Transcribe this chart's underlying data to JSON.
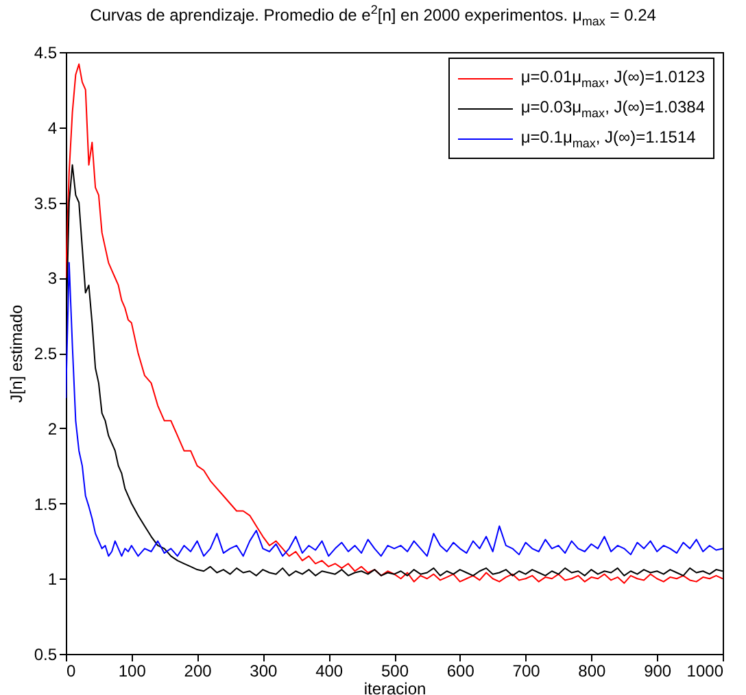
{
  "chart_data": {
    "type": "line",
    "title": "Curvas de aprendizaje. Promedio de e$^{2}$[n] en 2000 experimentos. μ$_{max}$ = 0.24",
    "xlabel": "iteracion",
    "ylabel": "J[n] estimado",
    "x": [
      0,
      5,
      10,
      15,
      20,
      25,
      30,
      35,
      40,
      45,
      50,
      55,
      60,
      65,
      70,
      75,
      80,
      85,
      90,
      95,
      100,
      110,
      120,
      130,
      140,
      150,
      160,
      170,
      180,
      190,
      200,
      210,
      220,
      230,
      240,
      250,
      260,
      270,
      280,
      290,
      300,
      310,
      320,
      330,
      340,
      350,
      360,
      370,
      380,
      390,
      400,
      410,
      420,
      430,
      440,
      450,
      460,
      470,
      480,
      490,
      500,
      510,
      520,
      530,
      540,
      550,
      560,
      570,
      580,
      590,
      600,
      610,
      620,
      630,
      640,
      650,
      660,
      670,
      680,
      690,
      700,
      710,
      720,
      730,
      740,
      750,
      760,
      770,
      780,
      790,
      800,
      810,
      820,
      830,
      840,
      850,
      860,
      870,
      880,
      890,
      900,
      910,
      920,
      930,
      940,
      950,
      960,
      970,
      980,
      990,
      1000
    ],
    "xlim": [
      0,
      1000
    ],
    "xticks": [
      0,
      100,
      200,
      300,
      400,
      500,
      600,
      700,
      800,
      900,
      1000
    ],
    "ylim": [
      0.5,
      4.5
    ],
    "yticks": [
      0.5,
      1,
      1.5,
      2,
      2.5,
      3,
      3.5,
      4,
      4.5
    ],
    "grid": false,
    "legend": "top right",
    "line_style": "solid",
    "marker": "none",
    "series": [
      {
        "name": "μ=0.01μ$_{max}$, J(∞)=1.0123",
        "color": "#ff0000",
        "values": [
          3.0,
          3.7,
          4.1,
          4.35,
          4.42,
          4.3,
          4.25,
          3.75,
          3.9,
          3.6,
          3.55,
          3.3,
          3.2,
          3.1,
          3.05,
          3.0,
          2.95,
          2.85,
          2.8,
          2.72,
          2.7,
          2.5,
          2.35,
          2.3,
          2.15,
          2.05,
          2.05,
          1.95,
          1.85,
          1.85,
          1.75,
          1.72,
          1.65,
          1.6,
          1.55,
          1.5,
          1.45,
          1.45,
          1.42,
          1.35,
          1.28,
          1.22,
          1.25,
          1.2,
          1.15,
          1.18,
          1.12,
          1.15,
          1.1,
          1.12,
          1.08,
          1.1,
          1.07,
          1.1,
          1.05,
          1.08,
          1.04,
          1.06,
          1.02,
          1.05,
          1.03,
          1.0,
          1.04,
          0.98,
          1.02,
          1.0,
          1.03,
          0.99,
          1.01,
          1.03,
          0.98,
          1.0,
          1.02,
          0.99,
          1.04,
          1.0,
          0.98,
          1.01,
          1.03,
          0.99,
          1.0,
          1.02,
          0.98,
          1.01,
          1.0,
          1.03,
          0.99,
          1.0,
          1.02,
          0.98,
          1.01,
          1.0,
          1.03,
          0.99,
          1.01,
          0.97,
          1.02,
          1.0,
          0.99,
          1.03,
          1.0,
          0.98,
          1.01,
          1.0,
          1.02,
          0.99,
          0.98,
          1.01,
          1.0,
          1.02,
          1.0
        ]
      },
      {
        "name": "μ=0.03μ$_{max}$, J(∞)=1.0384",
        "color": "#000000",
        "values": [
          2.6,
          3.5,
          3.75,
          3.55,
          3.5,
          3.2,
          2.9,
          2.95,
          2.7,
          2.4,
          2.3,
          2.1,
          2.05,
          1.95,
          1.9,
          1.85,
          1.75,
          1.7,
          1.6,
          1.55,
          1.5,
          1.42,
          1.35,
          1.28,
          1.22,
          1.2,
          1.15,
          1.12,
          1.1,
          1.08,
          1.06,
          1.05,
          1.08,
          1.04,
          1.06,
          1.03,
          1.07,
          1.04,
          1.05,
          1.02,
          1.06,
          1.04,
          1.03,
          1.07,
          1.02,
          1.05,
          1.03,
          1.06,
          1.02,
          1.05,
          1.04,
          1.03,
          1.06,
          1.02,
          1.04,
          1.05,
          1.03,
          1.06,
          1.02,
          1.04,
          1.03,
          1.05,
          1.02,
          1.06,
          1.03,
          1.04,
          1.07,
          1.02,
          1.05,
          1.03,
          1.06,
          1.04,
          1.02,
          1.05,
          1.07,
          1.03,
          1.04,
          1.06,
          1.02,
          1.05,
          1.03,
          1.06,
          1.04,
          1.02,
          1.05,
          1.03,
          1.07,
          1.04,
          1.05,
          1.02,
          1.06,
          1.03,
          1.05,
          1.04,
          1.07,
          1.02,
          1.05,
          1.03,
          1.06,
          1.04,
          1.05,
          1.03,
          1.06,
          1.04,
          1.02,
          1.07,
          1.04,
          1.05,
          1.03,
          1.06,
          1.05
        ]
      },
      {
        "name": "μ=0.1μ$_{max}$, J(∞)=1.1514",
        "color": "#0000ff",
        "values": [
          2.2,
          3.1,
          2.55,
          2.05,
          1.85,
          1.75,
          1.55,
          1.48,
          1.4,
          1.3,
          1.25,
          1.2,
          1.22,
          1.15,
          1.18,
          1.25,
          1.2,
          1.15,
          1.2,
          1.18,
          1.22,
          1.15,
          1.2,
          1.18,
          1.25,
          1.17,
          1.2,
          1.15,
          1.22,
          1.18,
          1.25,
          1.15,
          1.2,
          1.3,
          1.17,
          1.2,
          1.22,
          1.15,
          1.25,
          1.32,
          1.2,
          1.18,
          1.23,
          1.15,
          1.2,
          1.28,
          1.17,
          1.22,
          1.19,
          1.25,
          1.15,
          1.2,
          1.24,
          1.18,
          1.22,
          1.17,
          1.26,
          1.2,
          1.15,
          1.22,
          1.2,
          1.22,
          1.18,
          1.25,
          1.2,
          1.15,
          1.3,
          1.22,
          1.18,
          1.24,
          1.2,
          1.17,
          1.25,
          1.2,
          1.28,
          1.18,
          1.35,
          1.22,
          1.2,
          1.16,
          1.24,
          1.2,
          1.18,
          1.26,
          1.2,
          1.22,
          1.17,
          1.25,
          1.2,
          1.18,
          1.23,
          1.2,
          1.28,
          1.18,
          1.22,
          1.2,
          1.16,
          1.24,
          1.2,
          1.25,
          1.18,
          1.22,
          1.2,
          1.17,
          1.24,
          1.2,
          1.26,
          1.18,
          1.22,
          1.19,
          1.2
        ]
      }
    ]
  }
}
